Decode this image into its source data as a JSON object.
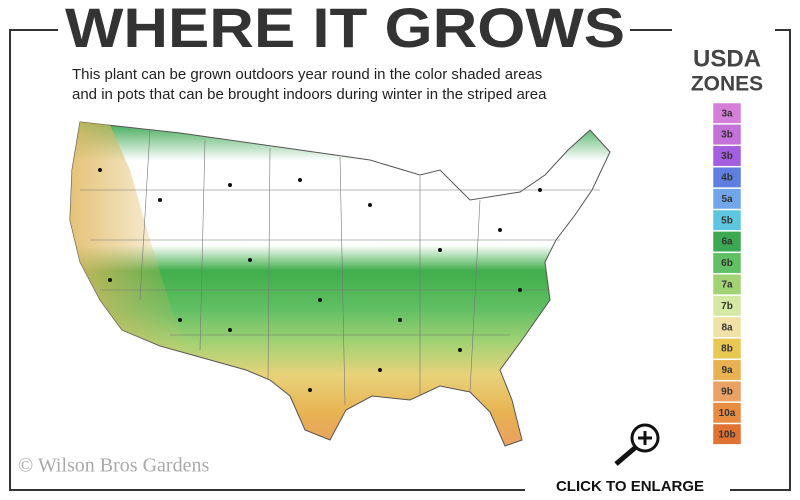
{
  "header": {
    "title": "WHERE IT GROWS",
    "subtitle_lines": [
      "This plant can be grown outdoors year round in the color shaded areas",
      "and in pots that can be brought indoors during winter in the striped area"
    ]
  },
  "legend": {
    "title_lines": [
      "USDA",
      "ZONES"
    ],
    "zones": [
      {
        "label": "3a",
        "color": "#d67fd8"
      },
      {
        "label": "3b",
        "color": "#c272d8"
      },
      {
        "label": "3b",
        "color": "#a45ee0"
      },
      {
        "label": "4b",
        "color": "#5f7fe0"
      },
      {
        "label": "5a",
        "color": "#72a6ea"
      },
      {
        "label": "5b",
        "color": "#5ec6e0"
      },
      {
        "label": "6a",
        "color": "#3ca852"
      },
      {
        "label": "6b",
        "color": "#62c064"
      },
      {
        "label": "7a",
        "color": "#a2d274"
      },
      {
        "label": "7b",
        "color": "#d4eaa4"
      },
      {
        "label": "8a",
        "color": "#f0e2a6"
      },
      {
        "label": "8b",
        "color": "#e8c852"
      },
      {
        "label": "9a",
        "color": "#e8b252"
      },
      {
        "label": "9b",
        "color": "#eaa264"
      },
      {
        "label": "10a",
        "color": "#e88c42"
      },
      {
        "label": "10b",
        "color": "#e07232"
      }
    ]
  },
  "footer": {
    "copyright": "© Wilson Bros Gardens",
    "action": "CLICK TO ENLARGE"
  }
}
